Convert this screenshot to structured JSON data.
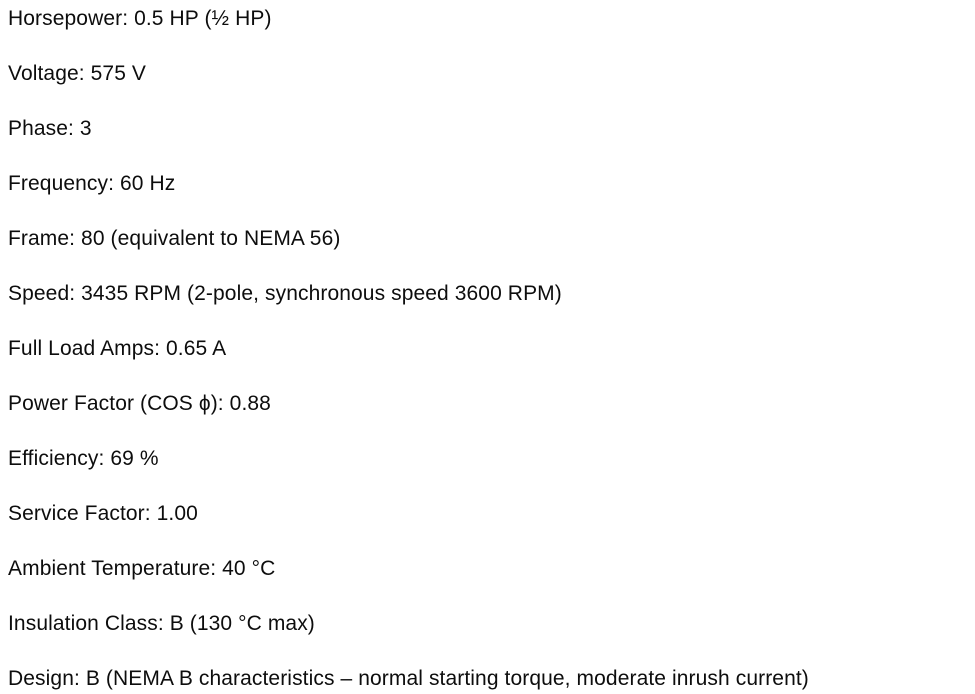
{
  "document": {
    "text_color": "#0d0d0d",
    "background_color": "#ffffff"
  },
  "specs": [
    {
      "label": "Horsepower:",
      "value": "0.5 HP (½ HP)"
    },
    {
      "label": "Voltage:",
      "value": "575 V"
    },
    {
      "label": "Phase:",
      "value": "3"
    },
    {
      "label": "Frequency:",
      "value": "60 Hz"
    },
    {
      "label": "Frame:",
      "value": "80 (equivalent to NEMA 56)"
    },
    {
      "label": "Speed:",
      "value": "3435 RPM (2-pole, synchronous speed 3600 RPM)"
    },
    {
      "label": "Full Load Amps:",
      "value": "0.65 A"
    },
    {
      "label": "Power Factor (COS ϕ):",
      "value": "0.88"
    },
    {
      "label": "Efficiency:",
      "value": "69 %"
    },
    {
      "label": "Service Factor:",
      "value": "1.00"
    },
    {
      "label": "Ambient Temperature:",
      "value": "40 °C"
    },
    {
      "label": "Insulation Class:",
      "value": "B (130 °C max)"
    },
    {
      "label": "Design:",
      "value": "B (NEMA B characteristics – normal starting torque, moderate inrush current)"
    }
  ]
}
